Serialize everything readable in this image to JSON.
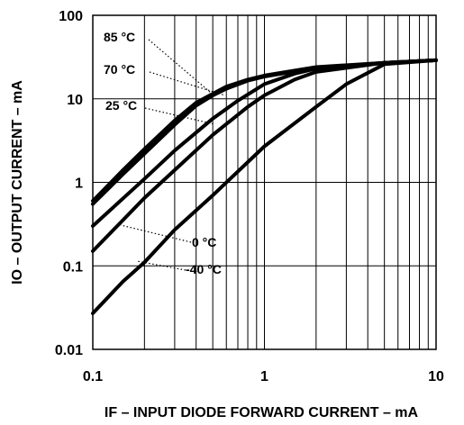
{
  "chart_data": {
    "type": "line",
    "x_scale": "log",
    "y_scale": "log",
    "xlim": [
      0.1,
      10
    ],
    "ylim": [
      0.01,
      100
    ],
    "xticks": [
      "0.1",
      "1",
      "10"
    ],
    "yticks": [
      "100",
      "10",
      "1",
      "0.1",
      "0.01"
    ],
    "xlabel": "IF – INPUT DIODE FORWARD CURRENT – mA",
    "ylabel": "IO – OUTPUT CURRENT – mA",
    "grid": true,
    "series": [
      {
        "name": "85 °C",
        "x": [
          0.1,
          0.15,
          0.2,
          0.3,
          0.4,
          0.5,
          0.6,
          0.8,
          1,
          2,
          5,
          10
        ],
        "y": [
          0.6,
          1.4,
          2.5,
          5.5,
          9,
          11.5,
          14,
          17,
          19,
          24,
          27,
          29
        ]
      },
      {
        "name": "70 °C",
        "x": [
          0.1,
          0.15,
          0.2,
          0.3,
          0.4,
          0.5,
          0.6,
          0.8,
          1,
          2,
          5,
          10
        ],
        "y": [
          0.55,
          1.25,
          2.2,
          4.9,
          8.3,
          11,
          13.2,
          16.5,
          18.5,
          23.5,
          27,
          29
        ]
      },
      {
        "name": "25 °C",
        "x": [
          0.1,
          0.2,
          0.3,
          0.5,
          0.7,
          1,
          1.5,
          2,
          5,
          10
        ],
        "y": [
          0.3,
          1.1,
          2.4,
          5.8,
          9.5,
          15,
          20,
          23,
          27,
          29
        ]
      },
      {
        "name": "0 °C",
        "x": [
          0.1,
          0.2,
          0.3,
          0.5,
          0.8,
          1,
          1.5,
          2,
          5,
          10
        ],
        "y": [
          0.15,
          0.65,
          1.4,
          3.7,
          8,
          11,
          17,
          21,
          27,
          29
        ]
      },
      {
        "name": "-40 °C",
        "x": [
          0.1,
          0.15,
          0.2,
          0.3,
          0.5,
          1,
          2,
          3,
          5,
          10
        ],
        "y": [
          0.027,
          0.065,
          0.11,
          0.27,
          0.7,
          2.7,
          8,
          15,
          26,
          29
        ]
      }
    ],
    "annotations": [
      {
        "text": "85 °C",
        "series": "85 °C"
      },
      {
        "text": "70 °C",
        "series": "70 °C"
      },
      {
        "text": "25 °C",
        "series": "25 °C"
      },
      {
        "text": "0 °C",
        "series": "0 °C"
      },
      {
        "text": "-40 °C",
        "series": "-40 °C"
      }
    ]
  }
}
